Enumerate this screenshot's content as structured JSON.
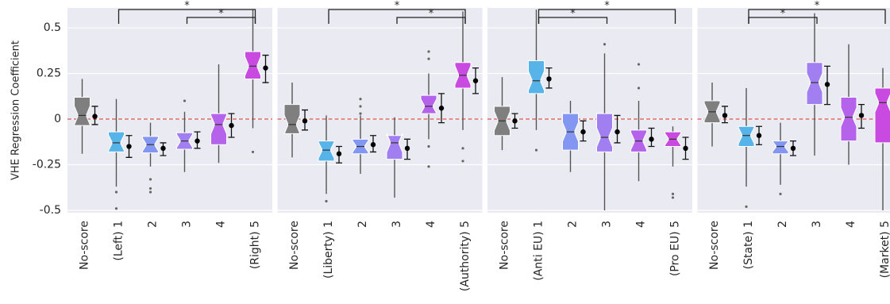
{
  "chart_data": [
    {
      "type": "box",
      "ylabel": "VHE Regression Coefficient",
      "ylim": [
        -0.513,
        0.609
      ],
      "yticks": [
        0.5,
        0.25,
        0,
        -0.25,
        -0.5
      ],
      "grid": true,
      "reference_line": 0,
      "colors": [
        "#7f7f7f",
        "#56b4e9",
        "#8296f2",
        "#a27ff0",
        "#b463ea",
        "#c94ae0"
      ],
      "categories": [
        "No-score",
        "(Left) 1",
        "2",
        "3",
        "4",
        "(Right) 5"
      ],
      "boxes": [
        {
          "median": 0.02,
          "q1": -0.035,
          "q3": 0.12,
          "whislo": -0.19,
          "whishi": 0.22,
          "fliers": [],
          "mean": 0.015,
          "ci": [
            -0.03,
            0.07
          ]
        },
        {
          "median": -0.13,
          "q1": -0.18,
          "q3": -0.07,
          "whislo": -0.37,
          "whishi": 0.11,
          "fliers": [
            -0.4,
            -0.49
          ],
          "mean": -0.15,
          "ci": [
            -0.21,
            -0.09
          ]
        },
        {
          "median": -0.14,
          "q1": -0.185,
          "q3": -0.095,
          "whislo": -0.26,
          "whishi": -0.02,
          "fliers": [
            -0.33,
            -0.38,
            -0.4
          ],
          "mean": -0.16,
          "ci": [
            -0.2,
            -0.13
          ]
        },
        {
          "median": -0.12,
          "q1": -0.165,
          "q3": -0.075,
          "whislo": -0.29,
          "whishi": 0.04,
          "fliers": [
            0.1
          ],
          "mean": -0.12,
          "ci": [
            -0.16,
            -0.07
          ]
        },
        {
          "median": -0.03,
          "q1": -0.14,
          "q3": 0.03,
          "whislo": -0.24,
          "whishi": 0.3,
          "fliers": [],
          "mean": -0.035,
          "ci": [
            -0.1,
            0.03
          ]
        },
        {
          "median": 0.29,
          "q1": 0.22,
          "q3": 0.37,
          "whislo": -0.05,
          "whishi": 0.6,
          "fliers": [
            -0.18
          ],
          "mean": 0.28,
          "ci": [
            0.2,
            0.35
          ]
        }
      ],
      "brackets": [
        {
          "between": [
            "(Left) 1",
            "(Right) 5"
          ],
          "label": "*"
        },
        {
          "between": [
            "3",
            "(Right) 5"
          ],
          "label": "*"
        }
      ]
    },
    {
      "type": "box",
      "ylim": [
        -0.513,
        0.609
      ],
      "yticks": [
        0.5,
        0.25,
        0,
        -0.25,
        -0.5
      ],
      "grid": true,
      "reference_line": 0,
      "colors": [
        "#7f7f7f",
        "#56b4e9",
        "#8296f2",
        "#a27ff0",
        "#b463ea",
        "#c94ae0"
      ],
      "categories": [
        "No-score",
        "(Liberty) 1",
        "2",
        "3",
        "4",
        "(Authority) 5"
      ],
      "boxes": [
        {
          "median": -0.03,
          "q1": -0.08,
          "q3": 0.08,
          "whislo": -0.21,
          "whishi": 0.2,
          "fliers": [],
          "mean": -0.01,
          "ci": [
            -0.06,
            0.05
          ]
        },
        {
          "median": -0.17,
          "q1": -0.23,
          "q3": -0.12,
          "whislo": -0.41,
          "whishi": 0.02,
          "fliers": [
            -0.45
          ],
          "mean": -0.19,
          "ci": [
            -0.24,
            -0.15
          ]
        },
        {
          "median": -0.15,
          "q1": -0.19,
          "q3": -0.11,
          "whislo": -0.3,
          "whishi": 0.02,
          "fliers": [
            0.03,
            0.07,
            0.11
          ],
          "mean": -0.14,
          "ci": [
            -0.18,
            -0.09
          ]
        },
        {
          "median": -0.13,
          "q1": -0.22,
          "q3": -0.09,
          "whislo": -0.43,
          "whishi": 0.01,
          "fliers": [],
          "mean": -0.16,
          "ci": [
            -0.22,
            -0.11
          ]
        },
        {
          "median": 0.07,
          "q1": 0.03,
          "q3": 0.13,
          "whislo": -0.11,
          "whishi": 0.25,
          "fliers": [
            0.37,
            0.33,
            -0.15,
            -0.26
          ],
          "mean": 0.06,
          "ci": [
            -0.02,
            0.14
          ]
        },
        {
          "median": 0.24,
          "q1": 0.17,
          "q3": 0.31,
          "whislo": -0.06,
          "whishi": 0.59,
          "fliers": [
            -0.16,
            -0.23
          ],
          "mean": 0.21,
          "ci": [
            0.14,
            0.28
          ]
        }
      ],
      "brackets": [
        {
          "between": [
            "(Liberty) 1",
            "(Authority) 5"
          ],
          "label": "*"
        },
        {
          "between": [
            "3",
            "(Authority) 5"
          ],
          "label": "*"
        }
      ]
    },
    {
      "type": "box",
      "ylim": [
        -0.513,
        0.609
      ],
      "yticks": [
        0.5,
        0.25,
        0,
        -0.25,
        -0.5
      ],
      "grid": true,
      "reference_line": 0,
      "colors": [
        "#7f7f7f",
        "#56b4e9",
        "#8296f2",
        "#a27ff0",
        "#b463ea",
        "#c94ae0"
      ],
      "categories": [
        "No-score",
        "(Anti EU) 1",
        "2",
        "3",
        "4",
        "(Pro EU) 5"
      ],
      "boxes": [
        {
          "median": -0.01,
          "q1": -0.09,
          "q3": 0.07,
          "whislo": -0.17,
          "whishi": 0.23,
          "fliers": [],
          "mean": -0.01,
          "ci": [
            -0.05,
            0.03
          ]
        },
        {
          "median": 0.21,
          "q1": 0.14,
          "q3": 0.32,
          "whislo": -0.06,
          "whishi": 0.6,
          "fliers": [
            -0.17
          ],
          "mean": 0.22,
          "ci": [
            0.17,
            0.28
          ]
        },
        {
          "median": -0.07,
          "q1": -0.17,
          "q3": 0.03,
          "whislo": -0.29,
          "whishi": 0.1,
          "fliers": [],
          "mean": -0.07,
          "ci": [
            -0.12,
            -0.01
          ]
        },
        {
          "median": -0.1,
          "q1": -0.18,
          "q3": 0.03,
          "whislo": -0.5,
          "whishi": 0.36,
          "fliers": [
            0.41
          ],
          "mean": -0.07,
          "ci": [
            -0.13,
            0.02
          ]
        },
        {
          "median": -0.12,
          "q1": -0.18,
          "q3": -0.06,
          "whislo": -0.34,
          "whishi": 0.1,
          "fliers": [
            0.3,
            0.17
          ],
          "mean": -0.11,
          "ci": [
            -0.15,
            -0.05
          ]
        },
        {
          "median": -0.11,
          "q1": -0.15,
          "q3": -0.07,
          "whislo": -0.26,
          "whishi": -0.04,
          "fliers": [
            -0.41,
            -0.43
          ],
          "mean": -0.16,
          "ci": [
            -0.22,
            -0.1
          ]
        }
      ],
      "brackets": [
        {
          "between": [
            "(Anti EU) 1",
            "(Pro EU) 5"
          ],
          "label": "*"
        },
        {
          "between": [
            "(Anti EU) 1",
            "3"
          ],
          "label": "*"
        }
      ]
    },
    {
      "type": "box",
      "ylim": [
        -0.513,
        0.609
      ],
      "yticks": [
        0.5,
        0.25,
        0,
        -0.25,
        -0.5
      ],
      "grid": true,
      "reference_line": 0,
      "colors": [
        "#7f7f7f",
        "#56b4e9",
        "#8296f2",
        "#a27ff0",
        "#b463ea",
        "#c94ae0"
      ],
      "categories": [
        "No-score",
        "(State) 1",
        "2",
        "3",
        "4",
        "(Market) 5"
      ],
      "boxes": [
        {
          "median": 0.04,
          "q1": -0.02,
          "q3": 0.1,
          "whislo": -0.15,
          "whishi": 0.2,
          "fliers": [],
          "mean": 0.02,
          "ci": [
            -0.02,
            0.07
          ]
        },
        {
          "median": -0.09,
          "q1": -0.15,
          "q3": -0.04,
          "whislo": -0.37,
          "whishi": 0.17,
          "fliers": [
            -0.48
          ],
          "mean": -0.09,
          "ci": [
            -0.14,
            -0.04
          ]
        },
        {
          "median": -0.15,
          "q1": -0.19,
          "q3": -0.12,
          "whislo": -0.36,
          "whishi": -0.02,
          "fliers": [
            -0.41
          ],
          "mean": -0.16,
          "ci": [
            -0.2,
            -0.12
          ]
        },
        {
          "median": 0.2,
          "q1": 0.08,
          "q3": 0.31,
          "whislo": -0.2,
          "whishi": 0.58,
          "fliers": [],
          "mean": 0.19,
          "ci": [
            0.08,
            0.29
          ]
        },
        {
          "median": 0.01,
          "q1": -0.12,
          "q3": 0.12,
          "whislo": -0.25,
          "whishi": 0.41,
          "fliers": [],
          "mean": 0.02,
          "ci": [
            -0.05,
            0.08
          ]
        },
        {
          "median": 0.09,
          "q1": -0.13,
          "q3": 0.17,
          "whislo": -0.5,
          "whishi": 0.28,
          "fliers": [],
          "mean": 0.01,
          "ci": [
            -0.06,
            0.08
          ]
        }
      ],
      "brackets": [
        {
          "between": [
            "(State) 1",
            "(Market) 5"
          ],
          "label": "*"
        },
        {
          "between": [
            "(State) 1",
            "3"
          ],
          "label": "*"
        }
      ]
    }
  ]
}
